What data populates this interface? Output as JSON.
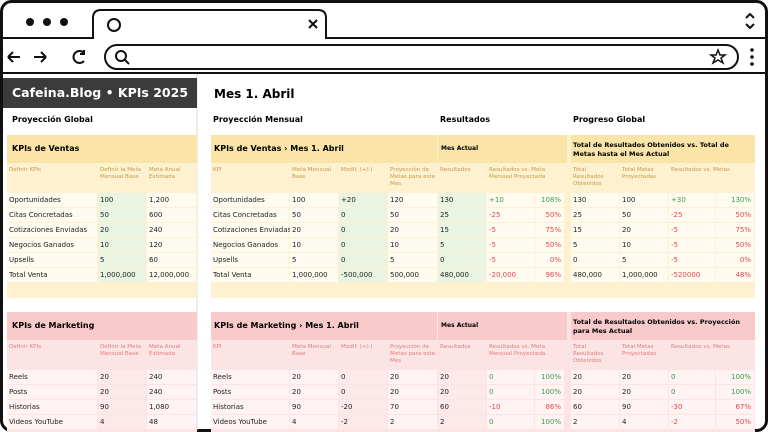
{
  "sidebar": {
    "title": "Cafeina.Blog • KPIs 2025",
    "section": "Proyección Global",
    "tables": [
      {
        "title": "KPIs de Ventas",
        "headers": [
          "Definir KPIs",
          "Definir la Meta Mensual Base",
          "Meta Anual Estimada"
        ],
        "rows": [
          [
            "Oportunidades",
            "100",
            "1,200"
          ],
          [
            "Citas Concretadas",
            "50",
            "600"
          ],
          [
            "Cotizaciones Enviadas",
            "20",
            "240"
          ],
          [
            "Negocios Ganados",
            "10",
            "120"
          ],
          [
            "Upsells",
            "5",
            "60"
          ],
          [
            "Total Venta",
            "1,000,000",
            "12,000,000"
          ]
        ]
      },
      {
        "title": "KPIs de Marketing",
        "headers": [
          "Definir KPIs",
          "Definir la Meta Mensual Base",
          "Meta Anual Estimada"
        ],
        "rows": [
          [
            "Reels",
            "20",
            "240"
          ],
          [
            "Posts",
            "20",
            "240"
          ],
          [
            "Historias",
            "90",
            "1,080"
          ],
          [
            "Videos YouTube",
            "4",
            "48"
          ]
        ]
      }
    ]
  },
  "main": {
    "title": "Mes 1. Abril",
    "sections": [
      "Proyección Mensual",
      "Resultados",
      "Progreso Global"
    ],
    "tables": [
      {
        "title": "KPIs de Ventas › Mes 1. Abril",
        "group1": "Mes Actual",
        "group2": "Total de Resultados Obtenidos vs. Total de Metas hasta el Mes Actual",
        "headers": [
          "KPI",
          "Meta Mensual Base",
          "Modif. (+/-)",
          "Proyección de Metas para este Mes",
          "Resultados",
          "Resultados vs. Meta Mensual Proyectada",
          "Total Resultados Obtenidos",
          "Total Metas Proyectadas",
          "Resultados vs. Metas"
        ],
        "rows": [
          [
            "Oportunidades",
            "100",
            "+20",
            "120",
            "130",
            "+10",
            "108%",
            "130",
            "100",
            "+30",
            "130%"
          ],
          [
            "Citas Concretadas",
            "50",
            "0",
            "50",
            "25",
            "-25",
            "50%",
            "25",
            "50",
            "-25",
            "50%"
          ],
          [
            "Cotizaciones Enviadas",
            "20",
            "0",
            "20",
            "15",
            "-5",
            "75%",
            "15",
            "20",
            "-5",
            "75%"
          ],
          [
            "Negocios Ganados",
            "10",
            "0",
            "10",
            "5",
            "-5",
            "50%",
            "5",
            "10",
            "-5",
            "50%"
          ],
          [
            "Upsells",
            "5",
            "0",
            "5",
            "0",
            "-5",
            "0%",
            "0",
            "5",
            "-5",
            "0%"
          ],
          [
            "Total Venta",
            "1,000,000",
            "-500,000",
            "500,000",
            "480,000",
            "-20,000",
            "96%",
            "480,000",
            "1,000,000",
            "-520000",
            "48%"
          ]
        ]
      },
      {
        "title": "KPIs de Marketing › Mes 1. Abril",
        "group1": "Mes Actual",
        "group2": "Total de Resultados Obtenidos vs. Proyección para Mes Actual",
        "headers": [
          "KPI",
          "Meta Mensual Base",
          "Modif. (+/-)",
          "Proyección de Metas para este Mes",
          "Resultados",
          "Resultados vs. Meta Mensual Proyectada",
          "Total Resultados Obtenidos",
          "Total Metas Proyectadas",
          "Resultados vs. Metas"
        ],
        "rows": [
          [
            "Reels",
            "20",
            "0",
            "20",
            "20",
            "0",
            "100%",
            "20",
            "20",
            "0",
            "100%"
          ],
          [
            "Posts",
            "20",
            "0",
            "20",
            "20",
            "0",
            "100%",
            "20",
            "20",
            "0",
            "100%"
          ],
          [
            "Historias",
            "90",
            "-20",
            "70",
            "60",
            "-10",
            "86%",
            "60",
            "90",
            "-30",
            "67%"
          ],
          [
            "Videos YouTube",
            "4",
            "-2",
            "2",
            "2",
            "0",
            "100%",
            "2",
            "4",
            "-2",
            "50%"
          ]
        ]
      }
    ]
  }
}
